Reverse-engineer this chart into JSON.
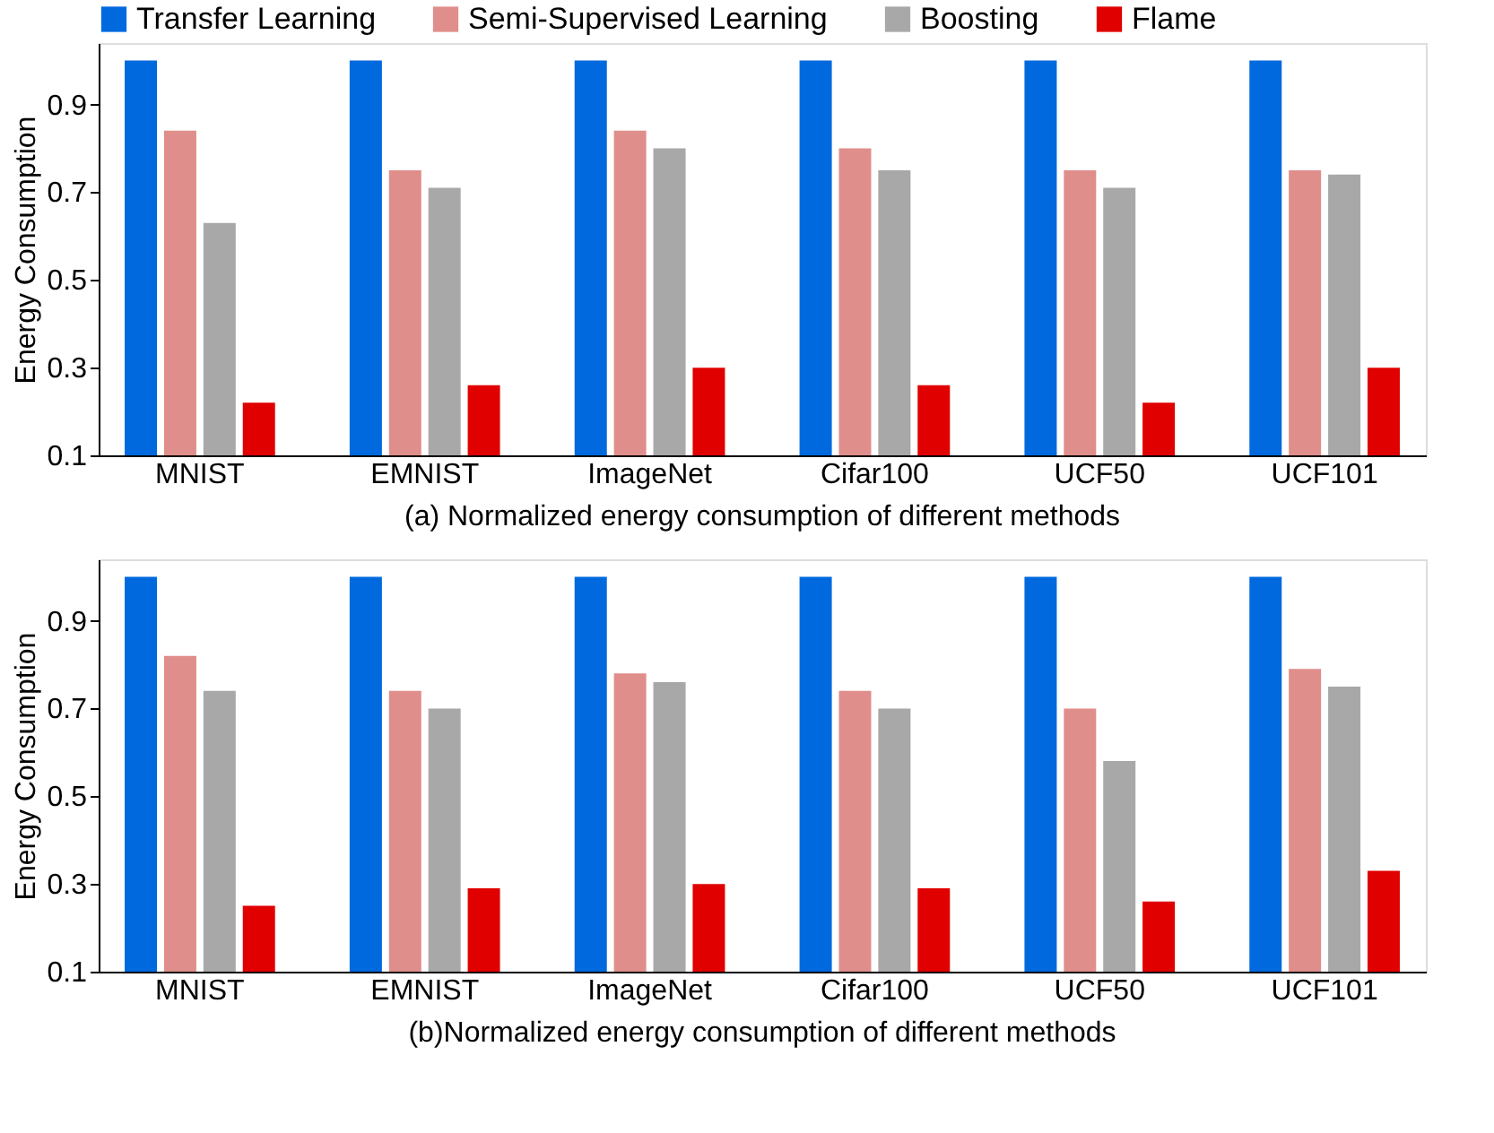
{
  "chart_data": [
    {
      "type": "bar",
      "title": "(a) Normalized energy consumption of different methods",
      "ylabel": "Energy Consumption",
      "categories": [
        "MNIST",
        "EMNIST",
        "ImageNet",
        "Cifar100",
        "UCF50",
        "UCF101"
      ],
      "series": [
        {
          "name": "Transfer Learning",
          "color": "#0069de",
          "values": [
            1.0,
            1.0,
            1.0,
            1.0,
            1.0,
            1.0
          ]
        },
        {
          "name": "Semi-Supervised Learning",
          "color": "#e08e8b",
          "values": [
            0.84,
            0.75,
            0.84,
            0.8,
            0.75,
            0.75
          ]
        },
        {
          "name": "Boosting",
          "color": "#a8a8a8",
          "values": [
            0.63,
            0.71,
            0.8,
            0.75,
            0.71,
            0.74
          ]
        },
        {
          "name": "Flame",
          "color": "#e00000",
          "values": [
            0.22,
            0.26,
            0.3,
            0.26,
            0.22,
            0.3
          ]
        }
      ],
      "ylim": [
        0.1,
        1.04
      ],
      "yticks": [
        0.1,
        0.3,
        0.5,
        0.7,
        0.9
      ],
      "grid": false,
      "legend": "top"
    },
    {
      "type": "bar",
      "title": "(b)Normalized energy consumption of different methods",
      "ylabel": "Energy Consumption",
      "categories": [
        "MNIST",
        "EMNIST",
        "ImageNet",
        "Cifar100",
        "UCF50",
        "UCF101"
      ],
      "series": [
        {
          "name": "Transfer Learning",
          "color": "#0069de",
          "values": [
            1.0,
            1.0,
            1.0,
            1.0,
            1.0,
            1.0
          ]
        },
        {
          "name": "Semi-Supervised Learning",
          "color": "#e08e8b",
          "values": [
            0.82,
            0.74,
            0.78,
            0.74,
            0.7,
            0.79
          ]
        },
        {
          "name": "Boosting",
          "color": "#a8a8a8",
          "values": [
            0.74,
            0.7,
            0.76,
            0.7,
            0.58,
            0.75
          ]
        },
        {
          "name": "Flame",
          "color": "#e00000",
          "values": [
            0.25,
            0.29,
            0.3,
            0.29,
            0.26,
            0.33
          ]
        }
      ],
      "ylim": [
        0.1,
        1.04
      ],
      "yticks": [
        0.1,
        0.3,
        0.5,
        0.7,
        0.9
      ],
      "grid": false,
      "legend": "top"
    }
  ]
}
